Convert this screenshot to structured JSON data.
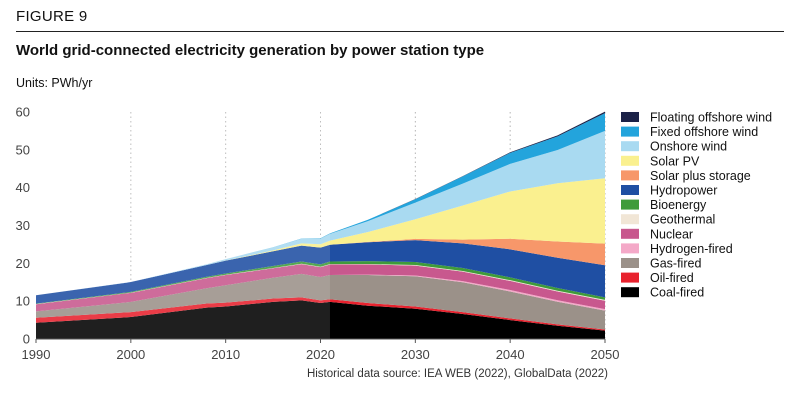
{
  "figure_label": "FIGURE 9",
  "title": "World grid-connected electricity generation by power station type",
  "units_label": "Units: PWh/yr",
  "source_note": "Historical data source: IEA WEB (2022), GlobalData (2022)",
  "chart_data": {
    "type": "area",
    "stacked": true,
    "x": [
      1990,
      2000,
      2008,
      2010,
      2015,
      2018,
      2020,
      2021,
      2025,
      2030,
      2035,
      2040,
      2045,
      2050
    ],
    "historical_end": 2021,
    "xlim": [
      1990,
      2050
    ],
    "ylim": [
      0,
      60
    ],
    "xticks": [
      1990,
      2000,
      2010,
      2020,
      2030,
      2040,
      2050
    ],
    "yticks": [
      0,
      10,
      20,
      30,
      40,
      50,
      60
    ],
    "grid": "vertical dotted",
    "legend_position": "right",
    "series": [
      {
        "name": "Coal-fired",
        "color": "#000000",
        "values": [
          4.3,
          5.8,
          8.3,
          8.6,
          9.8,
          10.2,
          9.5,
          9.8,
          8.8,
          8.0,
          6.6,
          5.0,
          3.5,
          2.2
        ]
      },
      {
        "name": "Oil-fired",
        "color": "#e8222e",
        "values": [
          1.3,
          1.3,
          1.1,
          1.0,
          0.9,
          0.8,
          0.7,
          0.7,
          0.7,
          0.6,
          0.5,
          0.45,
          0.35,
          0.3
        ]
      },
      {
        "name": "Gas-fired",
        "color": "#9b9189",
        "values": [
          1.7,
          2.7,
          4.0,
          4.6,
          5.5,
          6.2,
          6.2,
          6.4,
          7.4,
          8.0,
          7.9,
          7.1,
          6.0,
          5.0
        ]
      },
      {
        "name": "Hydrogen-fired",
        "color": "#f4a9c8",
        "values": [
          0,
          0,
          0,
          0,
          0,
          0,
          0,
          0,
          0.1,
          0.2,
          0.3,
          0.4,
          0.4,
          0.4
        ]
      },
      {
        "name": "Nuclear",
        "color": "#c8588e",
        "values": [
          1.9,
          2.4,
          2.7,
          2.7,
          2.5,
          2.6,
          2.6,
          2.8,
          2.7,
          2.6,
          2.5,
          2.4,
          2.3,
          2.2
        ]
      },
      {
        "name": "Geothermal",
        "color": "#f1e6d6",
        "values": [
          0.05,
          0.05,
          0.06,
          0.07,
          0.08,
          0.09,
          0.09,
          0.1,
          0.12,
          0.15,
          0.18,
          0.2,
          0.22,
          0.25
        ]
      },
      {
        "name": "Bioenergy",
        "color": "#3f9b3a",
        "values": [
          0.1,
          0.2,
          0.3,
          0.35,
          0.5,
          0.6,
          0.65,
          0.7,
          0.75,
          0.8,
          0.8,
          0.75,
          0.7,
          0.65
        ]
      },
      {
        "name": "Hydropower",
        "color": "#1f4fa3",
        "values": [
          2.2,
          2.6,
          3.1,
          3.4,
          3.9,
          4.2,
          4.4,
          4.4,
          5.0,
          5.8,
          6.5,
          7.4,
          8.0,
          8.5
        ]
      },
      {
        "name": "Solar plus storage",
        "color": "#f7976a",
        "values": [
          0,
          0,
          0,
          0,
          0,
          0,
          0,
          0,
          0.1,
          0.3,
          1.0,
          2.8,
          4.3,
          5.7
        ]
      },
      {
        "name": "Solar PV",
        "color": "#faf08f",
        "values": [
          0,
          0,
          0.01,
          0.03,
          0.25,
          0.6,
          0.9,
          1.1,
          2.6,
          5.2,
          9.0,
          12.5,
          15.4,
          17.3
        ]
      },
      {
        "name": "Onshore wind",
        "color": "#a9daf1",
        "values": [
          0.01,
          0.03,
          0.2,
          0.35,
          0.8,
          1.2,
          1.5,
          1.8,
          2.9,
          4.4,
          5.8,
          7.3,
          8.8,
          12.5
        ]
      },
      {
        "name": "Fixed offshore wind",
        "color": "#23a4dc",
        "values": [
          0,
          0,
          0,
          0.01,
          0.03,
          0.06,
          0.1,
          0.12,
          0.35,
          0.9,
          1.9,
          2.9,
          3.6,
          4.7
        ]
      },
      {
        "name": "Floating offshore wind",
        "color": "#1b2248",
        "values": [
          0,
          0,
          0,
          0,
          0,
          0,
          0,
          0,
          0.01,
          0.04,
          0.08,
          0.15,
          0.25,
          0.4
        ]
      }
    ]
  }
}
